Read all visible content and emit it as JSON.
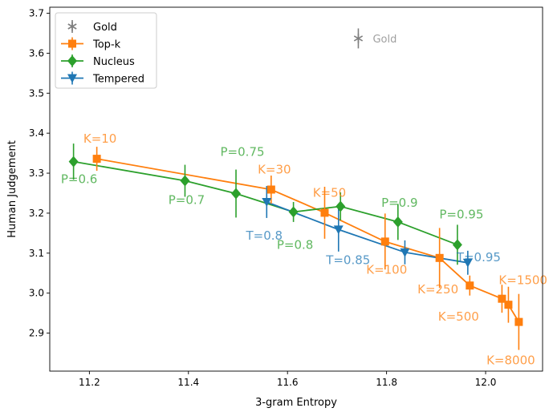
{
  "chart_data": {
    "type": "line",
    "xlabel": "3-gram Entropy",
    "ylabel": "Human Judgement",
    "xlim": [
      11.12,
      12.115
    ],
    "ylim": [
      2.805,
      3.715
    ],
    "xticks": [
      11.2,
      11.4,
      11.6,
      11.8,
      12.0
    ],
    "xtick_labels": [
      "11.2",
      "11.4",
      "11.6",
      "11.8",
      "12.0"
    ],
    "yticks": [
      2.9,
      3.0,
      3.1,
      3.2,
      3.3,
      3.4,
      3.5,
      3.6,
      3.7
    ],
    "ytick_labels": [
      "2.9",
      "3.0",
      "3.1",
      "3.2",
      "3.3",
      "3.4",
      "3.5",
      "3.6",
      "3.7"
    ],
    "grid": false,
    "legend_position": "top-left",
    "series": [
      {
        "name": "Gold",
        "color": "#7f7f7f",
        "marker": "star",
        "connected": false,
        "points": [
          {
            "x": 11.743,
            "y": 3.637,
            "err": 0.025,
            "label": "Gold"
          }
        ]
      },
      {
        "name": "Top-k",
        "color": "#ff7f0e",
        "marker": "square",
        "connected": true,
        "points": [
          {
            "x": 11.215,
            "y": 3.336,
            "err": 0.03,
            "label": "K=10"
          },
          {
            "x": 11.567,
            "y": 3.259,
            "err": 0.035,
            "label": "K=30"
          },
          {
            "x": 11.675,
            "y": 3.201,
            "err": 0.065,
            "label": "K=50"
          },
          {
            "x": 11.797,
            "y": 3.129,
            "err": 0.07,
            "label": "K=100"
          },
          {
            "x": 11.907,
            "y": 3.088,
            "err": 0.075,
            "label": "K=250"
          },
          {
            "x": 11.968,
            "y": 3.019,
            "err": 0.025,
            "label": "K=500"
          },
          {
            "x": 12.033,
            "y": 2.986,
            "err": 0.035,
            "label": "K=1500"
          },
          {
            "x": 12.046,
            "y": 2.971,
            "err": 0.045,
            "label": ""
          },
          {
            "x": 12.067,
            "y": 2.928,
            "err": 0.07,
            "label": "K=8000"
          }
        ]
      },
      {
        "name": "Nucleus",
        "color": "#2ca02c",
        "marker": "diamond",
        "connected": true,
        "points": [
          {
            "x": 11.168,
            "y": 3.329,
            "err": 0.045,
            "label": "P=0.6"
          },
          {
            "x": 11.393,
            "y": 3.281,
            "err": 0.04,
            "label": "P=0.7"
          },
          {
            "x": 11.496,
            "y": 3.249,
            "err": 0.06,
            "label": "P=0.75"
          },
          {
            "x": 11.612,
            "y": 3.203,
            "err": 0.025,
            "label": "P=0.8"
          },
          {
            "x": 11.707,
            "y": 3.217,
            "err": 0.035,
            "label": ""
          },
          {
            "x": 11.823,
            "y": 3.178,
            "err": 0.045,
            "label": "P=0.9"
          },
          {
            "x": 11.943,
            "y": 3.121,
            "err": 0.05,
            "label": "P=0.95"
          }
        ]
      },
      {
        "name": "Tempered",
        "color": "#1f77b4",
        "marker": "triangle-down",
        "connected": true,
        "points": [
          {
            "x": 11.558,
            "y": 3.228,
            "err": 0.04,
            "label": "T=0.8"
          },
          {
            "x": 11.703,
            "y": 3.159,
            "err": 0.055,
            "label": "T=0.85"
          },
          {
            "x": 11.837,
            "y": 3.102,
            "err": 0.03,
            "label": ""
          },
          {
            "x": 11.964,
            "y": 3.076,
            "err": 0.03,
            "label": "T=0.95"
          }
        ]
      }
    ]
  }
}
